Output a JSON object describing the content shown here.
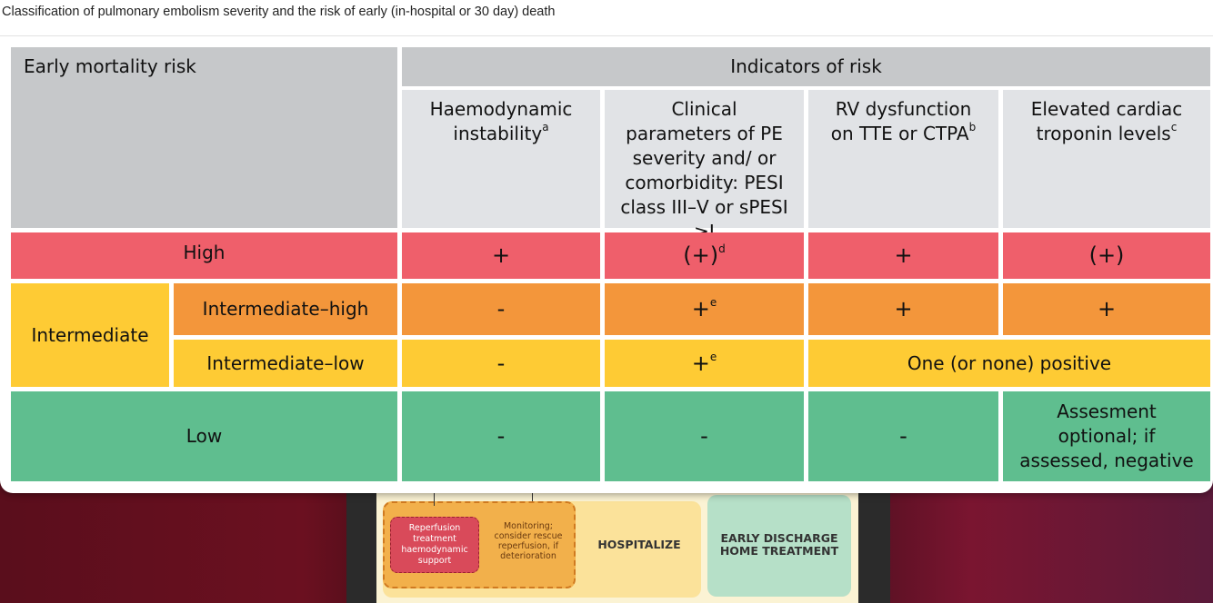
{
  "caption": "Classification of pulmonary embolism severity and the risk of early (in-hospital or 30 day) death",
  "header": {
    "risk_col": "Early mortality risk",
    "indicators": "Indicators of risk",
    "col1": "Haemodynamic instability",
    "col1_sup": "a",
    "col2": "Clinical parameters of PE severity and/ or comorbidity: PESI class III–V or sPESI ≥I",
    "col3": "RV dysfunction on TTE or CTPA",
    "col3_sup": "b",
    "col4": "Elevated cardiac troponin levels",
    "col4_sup": "c"
  },
  "rows": {
    "high": {
      "label": "High",
      "c1": "+",
      "c2": "(+)",
      "c2_sup": "d",
      "c3": "+",
      "c4": "(+)"
    },
    "intermediate": {
      "label": "Intermediate"
    },
    "int_high": {
      "label": "Intermediate–high",
      "c1": "-",
      "c2": "+",
      "c2_sup": "e",
      "c3": "+",
      "c4": "+"
    },
    "int_low": {
      "label": "Intermediate–low",
      "c1": "-",
      "c2": "+",
      "c2_sup": "e",
      "c34": "One (or none) positive"
    },
    "low": {
      "label": "Low",
      "c1": "-",
      "c2": "-",
      "c3": "-",
      "c4": "Assesment optional; if assessed, negative"
    }
  },
  "background_flow": {
    "reperfusion": "Reperfusion treatment haemodynamic support",
    "monitoring": "Monitoring; consider rescue reperfusion, if deterioration",
    "hospitalize": "HOSPITALIZE",
    "discharge": "EARLY DISCHARGE HOME TREATMENT"
  },
  "colors": {
    "high": "#ef5f6b",
    "intermediate_high": "#f3963b",
    "intermediate_low": "#fecb34",
    "low": "#5fbe8f"
  }
}
